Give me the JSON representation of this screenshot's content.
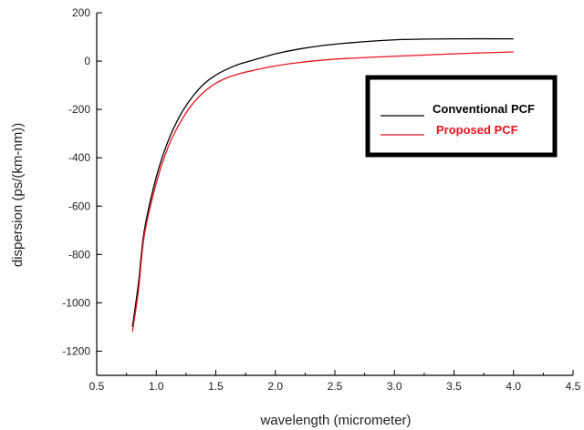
{
  "chart_data": {
    "type": "line",
    "xlabel": "wavelength (micrometer)",
    "ylabel": "dispersion (ps/(km-nm))",
    "xlim": [
      0.5,
      4.5
    ],
    "ylim": [
      -1300,
      200
    ],
    "x_ticks": [
      "0.5",
      "1.0",
      "1.5",
      "2.0",
      "2.5",
      "3.0",
      "3.5",
      "4.0",
      "4.5"
    ],
    "y_ticks": [
      "200",
      "0",
      "-200",
      "-400",
      "-600",
      "-800",
      "-1000",
      "-1200"
    ],
    "grid": false,
    "legend_position": "top-right",
    "series": [
      {
        "name": "Conventional PCF",
        "color": "#000000",
        "x": [
          0.8,
          0.85,
          0.9,
          1.0,
          1.1,
          1.2,
          1.3,
          1.4,
          1.5,
          1.6,
          1.7,
          1.8,
          2.0,
          2.2,
          2.5,
          3.0,
          3.5,
          4.0
        ],
        "y": [
          -1100,
          -920,
          -700,
          -480,
          -330,
          -225,
          -150,
          -95,
          -58,
          -32,
          -12,
          2,
          30,
          50,
          70,
          88,
          92,
          92
        ]
      },
      {
        "name": "Proposed PCF",
        "color": "#e8141e",
        "x": [
          0.8,
          0.85,
          0.9,
          1.0,
          1.1,
          1.2,
          1.3,
          1.4,
          1.5,
          1.6,
          1.7,
          1.8,
          2.0,
          2.2,
          2.5,
          3.0,
          3.5,
          4.0
        ],
        "y": [
          -1120,
          -950,
          -720,
          -505,
          -355,
          -255,
          -180,
          -128,
          -92,
          -68,
          -52,
          -40,
          -20,
          -6,
          8,
          20,
          30,
          38
        ]
      }
    ]
  }
}
